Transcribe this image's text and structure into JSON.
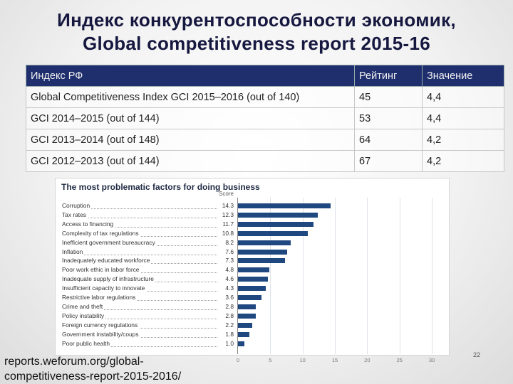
{
  "title": {
    "line1": "Индекс конкурентоспособности экономик,",
    "line2": "Global competitiveness report 2015-16"
  },
  "table": {
    "headers": [
      "Индекс РФ",
      "Рейтинг",
      "Значение"
    ],
    "rows": [
      [
        "Global Competitiveness Index GCI 2015–2016 (out of 140)",
        "45",
        "4,4"
      ],
      [
        "GCI 2014–2015 (out of 144)",
        "53",
        "4,4"
      ],
      [
        "GCI 2013–2014 (out of 148)",
        "64",
        "4,2"
      ],
      [
        "GCI 2012–2013 (out of 144)",
        "67",
        "4,2"
      ]
    ]
  },
  "chart_data": {
    "type": "bar",
    "orientation": "horizontal",
    "title": "The most problematic factors for doing business",
    "value_header": "Score",
    "categories": [
      "Corruption",
      "Tax rates",
      "Access to financing",
      "Complexity of tax regulations",
      "Inefficient government bureaucracy",
      "Inflation",
      "Inadequately educated workforce",
      "Poor work ethic in labor force",
      "Inadequate supply of infrastructure",
      "Insufficient capacity to innovate",
      "Restrictive labor regulations",
      "Crime and theft",
      "Policy instability",
      "Foreign currency regulations",
      "Government instability/coups",
      "Poor public health"
    ],
    "values": [
      14.3,
      12.3,
      11.7,
      10.8,
      8.2,
      7.6,
      7.3,
      4.8,
      4.6,
      4.3,
      3.6,
      2.8,
      2.8,
      2.2,
      1.8,
      1.0
    ],
    "value_labels": [
      "14.3",
      "12.3",
      "11.7",
      "10.8",
      "8.2",
      "7.6",
      "7.3",
      "4.8",
      "4.6",
      "4.3",
      "3.6",
      "2.8",
      "2.8",
      "2.2",
      "1.8",
      "1.0"
    ],
    "xlim": [
      0,
      30
    ],
    "xticks": [
      0,
      5,
      10,
      15,
      20,
      25,
      30
    ],
    "bar_color": "#1f4880"
  },
  "source": {
    "line1": "reports.weforum.org/global-",
    "line2": "competitiveness-report-2015-2016/"
  },
  "slide_number": "22"
}
